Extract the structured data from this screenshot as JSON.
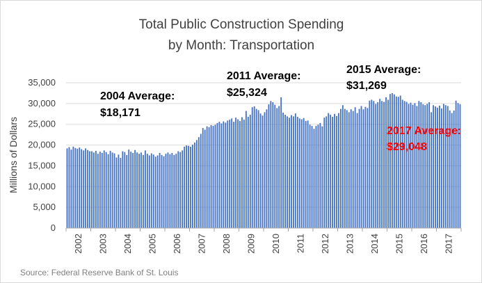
{
  "chart_data": {
    "type": "bar",
    "title_line1": "Total Public Construction Spending",
    "title_line2": "by Month: Transportation",
    "ylabel": "Millions of Dollars",
    "xlabel": "",
    "ylim": [
      0,
      35000
    ],
    "yticks": [
      "0",
      "5,000",
      "10,000",
      "15,000",
      "20,000",
      "25,000",
      "30,000",
      "35,000"
    ],
    "years": [
      "2002",
      "2003",
      "2004",
      "2005",
      "2006",
      "2007",
      "2008",
      "2009",
      "2010",
      "2011",
      "2012",
      "2013",
      "2014",
      "2015",
      "2016",
      "2017"
    ],
    "grid": true,
    "bar_color": "#4472c4",
    "source": "Source: Federal Reserve Bank of St. Louis",
    "annotations": [
      {
        "line1": "2004 Average:",
        "line2": "$18,171",
        "color": "#000000"
      },
      {
        "line1": "2011 Average:",
        "line2": "$25,324",
        "color": "#000000"
      },
      {
        "line1": "2015 Average:",
        "line2": "$31,269",
        "color": "#000000"
      },
      {
        "line1": "2017 Average:",
        "line2": "$29,048",
        "color": "#ff0000"
      }
    ],
    "series": [
      {
        "values": [
          19200,
          19500,
          18900,
          19600,
          19300,
          19100,
          19400,
          19000,
          18700,
          19200,
          18800,
          18500,
          18500,
          18200,
          18600,
          17900,
          18400,
          18100,
          18700,
          18300,
          17800,
          18600,
          18200,
          18000,
          17000,
          17700,
          16900,
          18500,
          18300,
          17600,
          18900,
          18400,
          18100,
          18800,
          18200,
          17900,
          18200,
          17600,
          18700,
          17900,
          17500,
          18000,
          17700,
          17200,
          17500,
          18100,
          17600,
          17300,
          17900,
          18200,
          17800,
          18100,
          17600,
          17900,
          18500,
          18300,
          18700,
          19600,
          19900,
          19800,
          19600,
          20100,
          20600,
          21200,
          21900,
          22700,
          24100,
          23700,
          24500,
          24300,
          24800,
          24600,
          24900,
          25300,
          25600,
          25200,
          25700,
          25400,
          25900,
          26100,
          26400,
          25600,
          26600,
          26200,
          25800,
          26700,
          26100,
          28200,
          26800,
          27300,
          29100,
          29300,
          28700,
          28400,
          27600,
          27100,
          27900,
          28600,
          29800,
          30600,
          30300,
          29700,
          28900,
          29400,
          31500,
          27800,
          27300,
          26900,
          26600,
          27200,
          26900,
          27600,
          26800,
          26400,
          26200,
          26500,
          25800,
          25900,
          24900,
          24600,
          23900,
          24600,
          24900,
          25300,
          24500,
          26600,
          26900,
          27700,
          27300,
          26800,
          27500,
          27000,
          27700,
          28700,
          29600,
          28700,
          28400,
          27900,
          28600,
          28200,
          29100,
          27700,
          28700,
          29400,
          28600,
          29200,
          28900,
          30700,
          30900,
          30600,
          29900,
          30300,
          31100,
          30600,
          30400,
          31500,
          30900,
          32300,
          32500,
          32200,
          31700,
          31600,
          31900,
          30900,
          30600,
          30400,
          29900,
          30200,
          29700,
          30100,
          29400,
          30600,
          30300,
          29800,
          29600,
          29900,
          30300,
          27900,
          29600,
          29300,
          29000,
          29500,
          28800,
          29900,
          29600,
          29400,
          28300,
          27700,
          28300,
          30700,
          30100,
          29800
        ]
      }
    ]
  }
}
